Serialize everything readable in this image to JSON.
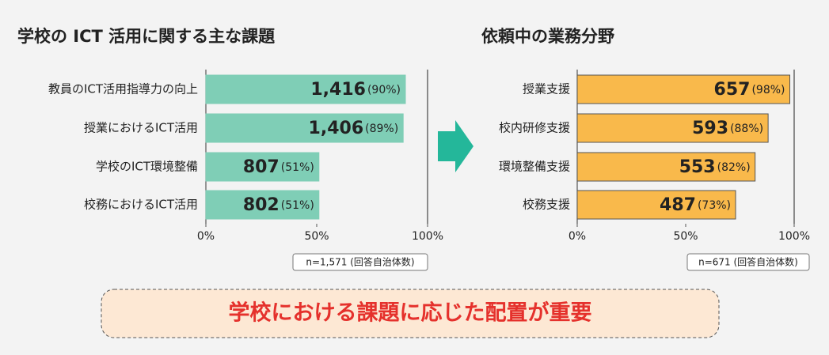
{
  "chart_data": [
    {
      "type": "bar",
      "orientation": "horizontal",
      "title": "学校の ICT 活用に関する主な課題",
      "categories": [
        "教員のICT活用指導力の向上",
        "授業におけるICT活用",
        "学校のICT環境整備",
        "校務におけるICT活用"
      ],
      "values": [
        90,
        89,
        51,
        51
      ],
      "count_labels": [
        "1,416",
        "1,406",
        "807",
        "802"
      ],
      "value_labels": [
        "(90%)",
        "(89%)",
        "(51%)",
        "(51%)"
      ],
      "color": "#7fceb6",
      "border_color": "#7fceb6",
      "xlim": [
        0,
        100
      ],
      "xticks": [
        {
          "value": 0,
          "label": "0%"
        },
        {
          "value": 50,
          "label": "50%"
        },
        {
          "value": 100,
          "label": "100%"
        }
      ],
      "note": "n=1,571 (回答自治体数)"
    },
    {
      "type": "bar",
      "orientation": "horizontal",
      "title": "依頼中の業務分野",
      "categories": [
        "授業支援",
        "校内研修支援",
        "環境整備支援",
        "校務支援"
      ],
      "values": [
        98,
        88,
        82,
        73
      ],
      "count_labels": [
        "657",
        "593",
        "553",
        "487"
      ],
      "value_labels": [
        "(98%)",
        "(88%)",
        "(82%)",
        "(73%)"
      ],
      "color": "#f9b94b",
      "border_color": "#555555",
      "xlim": [
        0,
        100
      ],
      "xticks": [
        {
          "value": 0,
          "label": "0%"
        },
        {
          "value": 50,
          "label": "50%"
        },
        {
          "value": 100,
          "label": "100%"
        }
      ],
      "note": "n=671 (回答自治体数)"
    }
  ],
  "conclusion": "学校における課題に応じた配置が重要"
}
